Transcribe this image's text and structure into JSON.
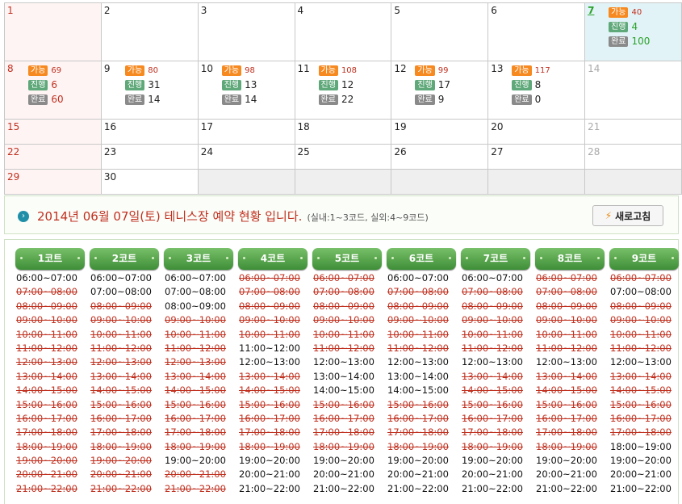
{
  "calendar": {
    "rows": [
      [
        {
          "day": "1",
          "type": "sun"
        },
        {
          "day": "2"
        },
        {
          "day": "3"
        },
        {
          "day": "4"
        },
        {
          "day": "5"
        },
        {
          "day": "6"
        },
        {
          "day": "7",
          "type": "today",
          "avail_label": "가능",
          "avail": "40",
          "prog_label": "진행",
          "prog": "4",
          "done_label": "완료",
          "done": "100"
        }
      ],
      [
        {
          "day": "8",
          "type": "sun",
          "avail_label": "가능",
          "avail": "69",
          "prog_label": "진행",
          "prog": "6",
          "done_label": "완료",
          "done": "60"
        },
        {
          "day": "9",
          "avail_label": "가능",
          "avail": "80",
          "prog_label": "진행",
          "prog": "31",
          "done_label": "완료",
          "done": "14"
        },
        {
          "day": "10",
          "avail_label": "가능",
          "avail": "98",
          "prog_label": "진행",
          "prog": "13",
          "done_label": "완료",
          "done": "14"
        },
        {
          "day": "11",
          "avail_label": "가능",
          "avail": "108",
          "prog_label": "진행",
          "prog": "12",
          "done_label": "완료",
          "done": "22"
        },
        {
          "day": "12",
          "avail_label": "가능",
          "avail": "99",
          "prog_label": "진행",
          "prog": "17",
          "done_label": "완료",
          "done": "9"
        },
        {
          "day": "13",
          "avail_label": "가능",
          "avail": "117",
          "prog_label": "진행",
          "prog": "8",
          "done_label": "완료",
          "done": "0"
        },
        {
          "day": "14",
          "type": "sat"
        }
      ],
      [
        {
          "day": "15",
          "type": "sun"
        },
        {
          "day": "16"
        },
        {
          "day": "17"
        },
        {
          "day": "18"
        },
        {
          "day": "19"
        },
        {
          "day": "20"
        },
        {
          "day": "21",
          "type": "sat"
        }
      ],
      [
        {
          "day": "22",
          "type": "sun"
        },
        {
          "day": "23"
        },
        {
          "day": "24"
        },
        {
          "day": "25"
        },
        {
          "day": "26"
        },
        {
          "day": "27"
        },
        {
          "day": "28",
          "type": "sat"
        }
      ],
      [
        {
          "day": "29",
          "type": "sun"
        },
        {
          "day": "30"
        },
        {
          "day": "",
          "type": "empty"
        },
        {
          "day": "",
          "type": "empty"
        },
        {
          "day": "",
          "type": "empty"
        },
        {
          "day": "",
          "type": "empty"
        },
        {
          "day": "",
          "type": "empty"
        }
      ]
    ]
  },
  "header": {
    "title": "2014년 06월 07일(토) 테니스장 예약 현황 입니다.",
    "note": "(실내:1~3코드, 실외:4~9코드)",
    "refresh_label": "새로고침",
    "arrow_icon": "circle-arrow-icon",
    "refresh_icon": "refresh-icon"
  },
  "slot_times": [
    "06:00~07:00",
    "07:00~08:00",
    "08:00~09:00",
    "09:00~10:00",
    "10:00~11:00",
    "11:00~12:00",
    "12:00~13:00",
    "13:00~14:00",
    "14:00~15:00",
    "15:00~16:00",
    "16:00~17:00",
    "17:00~18:00",
    "18:00~19:00",
    "19:00~20:00",
    "20:00~21:00",
    "21:00~22:00"
  ],
  "courts": [
    {
      "label": "1코트",
      "slots": [
        {
          "time": "06:00~07:00",
          "booked": false
        },
        {
          "time": "07:00~08:00",
          "booked": true
        },
        {
          "time": "08:00~09:00",
          "booked": true
        },
        {
          "time": "09:00~10:00",
          "booked": true
        },
        {
          "time": "10:00~11:00",
          "booked": true
        },
        {
          "time": "11:00~12:00",
          "booked": true
        },
        {
          "time": "12:00~13:00",
          "booked": true
        },
        {
          "time": "13:00~14:00",
          "booked": true
        },
        {
          "time": "14:00~15:00",
          "booked": true
        },
        {
          "time": "15:00~16:00",
          "booked": true
        },
        {
          "time": "16:00~17:00",
          "booked": true
        },
        {
          "time": "17:00~18:00",
          "booked": true
        },
        {
          "time": "18:00~19:00",
          "booked": true
        },
        {
          "time": "19:00~20:00",
          "booked": true
        },
        {
          "time": "20:00~21:00",
          "booked": true
        },
        {
          "time": "21:00~22:00",
          "booked": true
        }
      ]
    },
    {
      "label": "2코트",
      "slots": [
        {
          "time": "06:00~07:00",
          "booked": false
        },
        {
          "time": "07:00~08:00",
          "booked": false
        },
        {
          "time": "08:00~09:00",
          "booked": true
        },
        {
          "time": "09:00~10:00",
          "booked": true
        },
        {
          "time": "10:00~11:00",
          "booked": true
        },
        {
          "time": "11:00~12:00",
          "booked": true
        },
        {
          "time": "12:00~13:00",
          "booked": true
        },
        {
          "time": "13:00~14:00",
          "booked": true
        },
        {
          "time": "14:00~15:00",
          "booked": true
        },
        {
          "time": "15:00~16:00",
          "booked": true
        },
        {
          "time": "16:00~17:00",
          "booked": true
        },
        {
          "time": "17:00~18:00",
          "booked": true
        },
        {
          "time": "18:00~19:00",
          "booked": true
        },
        {
          "time": "19:00~20:00",
          "booked": true
        },
        {
          "time": "20:00~21:00",
          "booked": true
        },
        {
          "time": "21:00~22:00",
          "booked": true
        }
      ]
    },
    {
      "label": "3코트",
      "slots": [
        {
          "time": "06:00~07:00",
          "booked": false
        },
        {
          "time": "07:00~08:00",
          "booked": false
        },
        {
          "time": "08:00~09:00",
          "booked": false
        },
        {
          "time": "09:00~10:00",
          "booked": true
        },
        {
          "time": "10:00~11:00",
          "booked": true
        },
        {
          "time": "11:00~12:00",
          "booked": true
        },
        {
          "time": "12:00~13:00",
          "booked": true
        },
        {
          "time": "13:00~14:00",
          "booked": true
        },
        {
          "time": "14:00~15:00",
          "booked": true
        },
        {
          "time": "15:00~16:00",
          "booked": true
        },
        {
          "time": "16:00~17:00",
          "booked": true
        },
        {
          "time": "17:00~18:00",
          "booked": true
        },
        {
          "time": "18:00~19:00",
          "booked": true
        },
        {
          "time": "19:00~20:00",
          "booked": false
        },
        {
          "time": "20:00~21:00",
          "booked": true
        },
        {
          "time": "21:00~22:00",
          "booked": true
        }
      ]
    },
    {
      "label": "4코트",
      "slots": [
        {
          "time": "06:00~07:00",
          "booked": true
        },
        {
          "time": "07:00~08:00",
          "booked": true
        },
        {
          "time": "08:00~09:00",
          "booked": true
        },
        {
          "time": "09:00~10:00",
          "booked": true
        },
        {
          "time": "10:00~11:00",
          "booked": true
        },
        {
          "time": "11:00~12:00",
          "booked": false
        },
        {
          "time": "12:00~13:00",
          "booked": false
        },
        {
          "time": "13:00~14:00",
          "booked": true
        },
        {
          "time": "14:00~15:00",
          "booked": true
        },
        {
          "time": "15:00~16:00",
          "booked": true
        },
        {
          "time": "16:00~17:00",
          "booked": true
        },
        {
          "time": "17:00~18:00",
          "booked": true
        },
        {
          "time": "18:00~19:00",
          "booked": true
        },
        {
          "time": "19:00~20:00",
          "booked": false
        },
        {
          "time": "20:00~21:00",
          "booked": false
        },
        {
          "time": "21:00~22:00",
          "booked": false
        }
      ]
    },
    {
      "label": "5코트",
      "slots": [
        {
          "time": "06:00~07:00",
          "booked": true
        },
        {
          "time": "07:00~08:00",
          "booked": true
        },
        {
          "time": "08:00~09:00",
          "booked": true
        },
        {
          "time": "09:00~10:00",
          "booked": true
        },
        {
          "time": "10:00~11:00",
          "booked": true
        },
        {
          "time": "11:00~12:00",
          "booked": true
        },
        {
          "time": "12:00~13:00",
          "booked": false
        },
        {
          "time": "13:00~14:00",
          "booked": false
        },
        {
          "time": "14:00~15:00",
          "booked": false
        },
        {
          "time": "15:00~16:00",
          "booked": true
        },
        {
          "time": "16:00~17:00",
          "booked": true
        },
        {
          "time": "17:00~18:00",
          "booked": true
        },
        {
          "time": "18:00~19:00",
          "booked": true
        },
        {
          "time": "19:00~20:00",
          "booked": false
        },
        {
          "time": "20:00~21:00",
          "booked": false
        },
        {
          "time": "21:00~22:00",
          "booked": false
        }
      ]
    },
    {
      "label": "6코트",
      "slots": [
        {
          "time": "06:00~07:00",
          "booked": false
        },
        {
          "time": "07:00~08:00",
          "booked": true
        },
        {
          "time": "08:00~09:00",
          "booked": true
        },
        {
          "time": "09:00~10:00",
          "booked": true
        },
        {
          "time": "10:00~11:00",
          "booked": true
        },
        {
          "time": "11:00~12:00",
          "booked": true
        },
        {
          "time": "12:00~13:00",
          "booked": false
        },
        {
          "time": "13:00~14:00",
          "booked": false
        },
        {
          "time": "14:00~15:00",
          "booked": false
        },
        {
          "time": "15:00~16:00",
          "booked": true
        },
        {
          "time": "16:00~17:00",
          "booked": true
        },
        {
          "time": "17:00~18:00",
          "booked": true
        },
        {
          "time": "18:00~19:00",
          "booked": true
        },
        {
          "time": "19:00~20:00",
          "booked": false
        },
        {
          "time": "20:00~21:00",
          "booked": false
        },
        {
          "time": "21:00~22:00",
          "booked": false
        }
      ]
    },
    {
      "label": "7코트",
      "slots": [
        {
          "time": "06:00~07:00",
          "booked": false
        },
        {
          "time": "07:00~08:00",
          "booked": true
        },
        {
          "time": "08:00~09:00",
          "booked": true
        },
        {
          "time": "09:00~10:00",
          "booked": true
        },
        {
          "time": "10:00~11:00",
          "booked": true
        },
        {
          "time": "11:00~12:00",
          "booked": true
        },
        {
          "time": "12:00~13:00",
          "booked": false
        },
        {
          "time": "13:00~14:00",
          "booked": true
        },
        {
          "time": "14:00~15:00",
          "booked": true
        },
        {
          "time": "15:00~16:00",
          "booked": true
        },
        {
          "time": "16:00~17:00",
          "booked": true
        },
        {
          "time": "17:00~18:00",
          "booked": true
        },
        {
          "time": "18:00~19:00",
          "booked": true
        },
        {
          "time": "19:00~20:00",
          "booked": false
        },
        {
          "time": "20:00~21:00",
          "booked": false
        },
        {
          "time": "21:00~22:00",
          "booked": false
        }
      ]
    },
    {
      "label": "8코트",
      "slots": [
        {
          "time": "06:00~07:00",
          "booked": true
        },
        {
          "time": "07:00~08:00",
          "booked": true
        },
        {
          "time": "08:00~09:00",
          "booked": true
        },
        {
          "time": "09:00~10:00",
          "booked": true
        },
        {
          "time": "10:00~11:00",
          "booked": true
        },
        {
          "time": "11:00~12:00",
          "booked": true
        },
        {
          "time": "12:00~13:00",
          "booked": false
        },
        {
          "time": "13:00~14:00",
          "booked": true
        },
        {
          "time": "14:00~15:00",
          "booked": true
        },
        {
          "time": "15:00~16:00",
          "booked": true
        },
        {
          "time": "16:00~17:00",
          "booked": true
        },
        {
          "time": "17:00~18:00",
          "booked": true
        },
        {
          "time": "18:00~19:00",
          "booked": true
        },
        {
          "time": "19:00~20:00",
          "booked": false
        },
        {
          "time": "20:00~21:00",
          "booked": false
        },
        {
          "time": "21:00~22:00",
          "booked": false
        }
      ]
    },
    {
      "label": "9코트",
      "slots": [
        {
          "time": "06:00~07:00",
          "booked": true
        },
        {
          "time": "07:00~08:00",
          "booked": false
        },
        {
          "time": "08:00~09:00",
          "booked": true
        },
        {
          "time": "09:00~10:00",
          "booked": true
        },
        {
          "time": "10:00~11:00",
          "booked": true
        },
        {
          "time": "11:00~12:00",
          "booked": true
        },
        {
          "time": "12:00~13:00",
          "booked": false
        },
        {
          "time": "13:00~14:00",
          "booked": true
        },
        {
          "time": "14:00~15:00",
          "booked": true
        },
        {
          "time": "15:00~16:00",
          "booked": true
        },
        {
          "time": "16:00~17:00",
          "booked": true
        },
        {
          "time": "17:00~18:00",
          "booked": true
        },
        {
          "time": "18:00~19:00",
          "booked": false
        },
        {
          "time": "19:00~20:00",
          "booked": false
        },
        {
          "time": "20:00~21:00",
          "booked": false
        },
        {
          "time": "21:00~22:00",
          "booked": false
        }
      ]
    }
  ]
}
